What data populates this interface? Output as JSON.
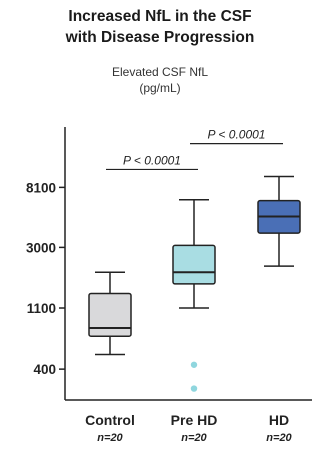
{
  "chart_data": {
    "type": "box",
    "title_line1": "Increased NfL in the CSF",
    "title_line2": "with Disease Progression",
    "ylabel_line1": "Elevated CSF NfL",
    "ylabel_line2": "(pg/mL)",
    "yscale": "log",
    "yticks": [
      400,
      1100,
      3000,
      8100
    ],
    "ytick_labels": [
      "400",
      "1100",
      "3000",
      "8100"
    ],
    "ylim": [
      240,
      22000
    ],
    "categories": [
      "Control",
      "Pre HD",
      "HD"
    ],
    "n_labels": [
      "n=20",
      "n=20",
      "n=20"
    ],
    "box_colors": [
      "#d9d9db",
      "#a9dde3",
      "#4a6fb6"
    ],
    "outlier_color": "#8fd6de",
    "boxes": [
      {
        "min": 510,
        "q1": 690,
        "median": 790,
        "q3": 1400,
        "max": 1990,
        "outliers": []
      },
      {
        "min": 1100,
        "q1": 1640,
        "median": 1990,
        "q3": 3100,
        "max": 6600,
        "outliers": [
          430,
          290
        ]
      },
      {
        "min": 2200,
        "q1": 3800,
        "median": 5000,
        "q3": 6500,
        "max": 9700,
        "outliers": []
      }
    ],
    "comparisons": [
      {
        "from": 0,
        "to": 1,
        "label": "P < 0.0001",
        "y": 10900
      },
      {
        "from": 1,
        "to": 2,
        "label": "P < 0.0001",
        "y": 16700
      }
    ]
  }
}
